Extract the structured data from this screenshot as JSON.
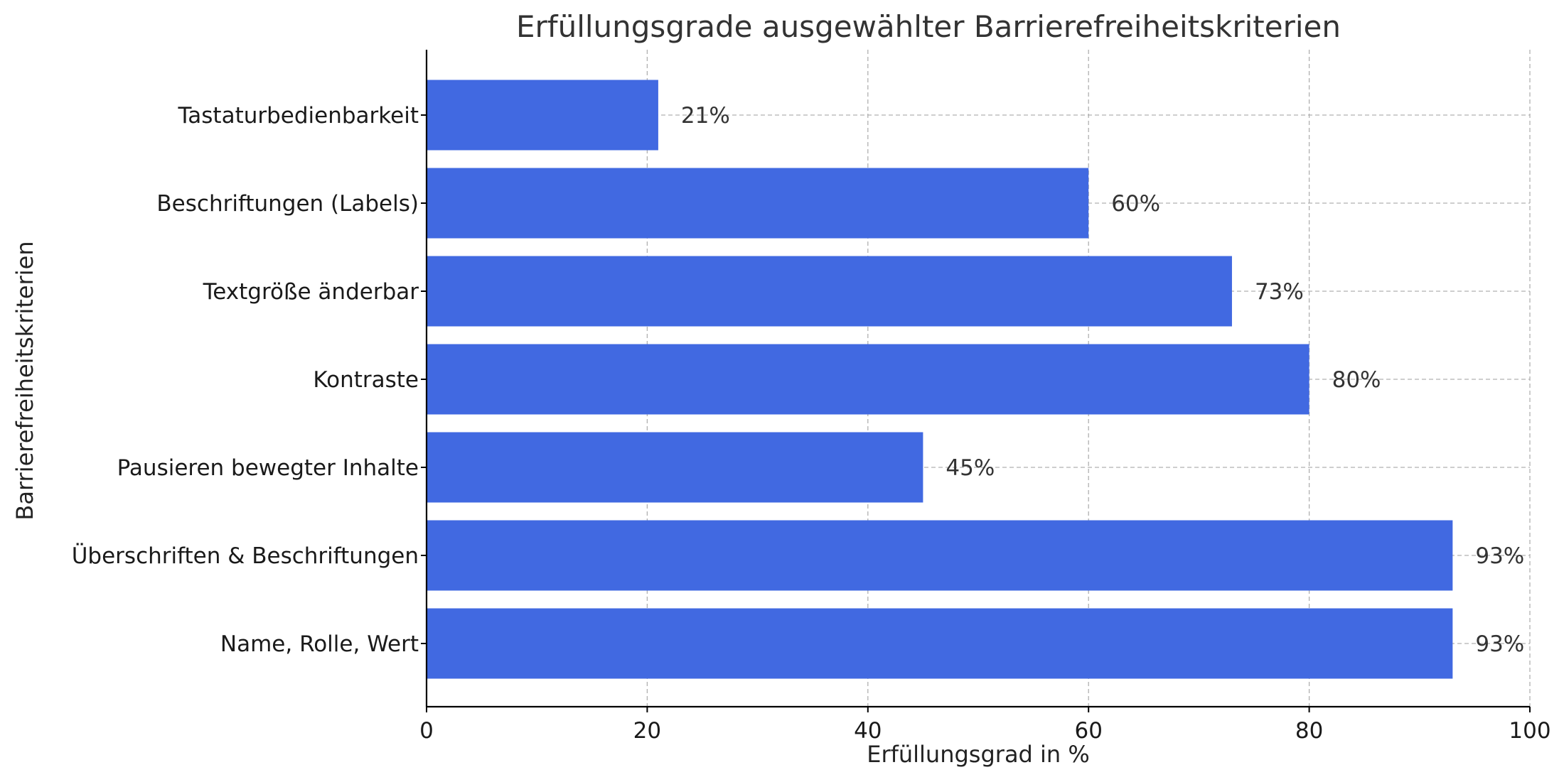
{
  "chart_data": {
    "type": "bar",
    "orientation": "horizontal",
    "title": "Erfüllungsgrade ausgewählter Barrierefreiheitskriterien",
    "xlabel": "Erfüllungsgrad in %",
    "ylabel": "Barrierefreiheitskriterien",
    "xlim": [
      0,
      100
    ],
    "xticks": [
      0,
      20,
      40,
      60,
      80,
      100
    ],
    "grid": true,
    "bar_color": "#4169E1",
    "categories": [
      "Tastaturbedienbarkeit",
      "Beschriftungen (Labels)",
      "Textgröße änderbar",
      "Kontraste",
      "Pausieren bewegter Inhalte",
      "Überschriften & Beschriftungen",
      "Name, Rolle, Wert"
    ],
    "values": [
      21,
      60,
      73,
      80,
      45,
      93,
      93
    ],
    "value_labels": [
      "21%",
      "60%",
      "73%",
      "80%",
      "45%",
      "93%",
      "93%"
    ]
  }
}
